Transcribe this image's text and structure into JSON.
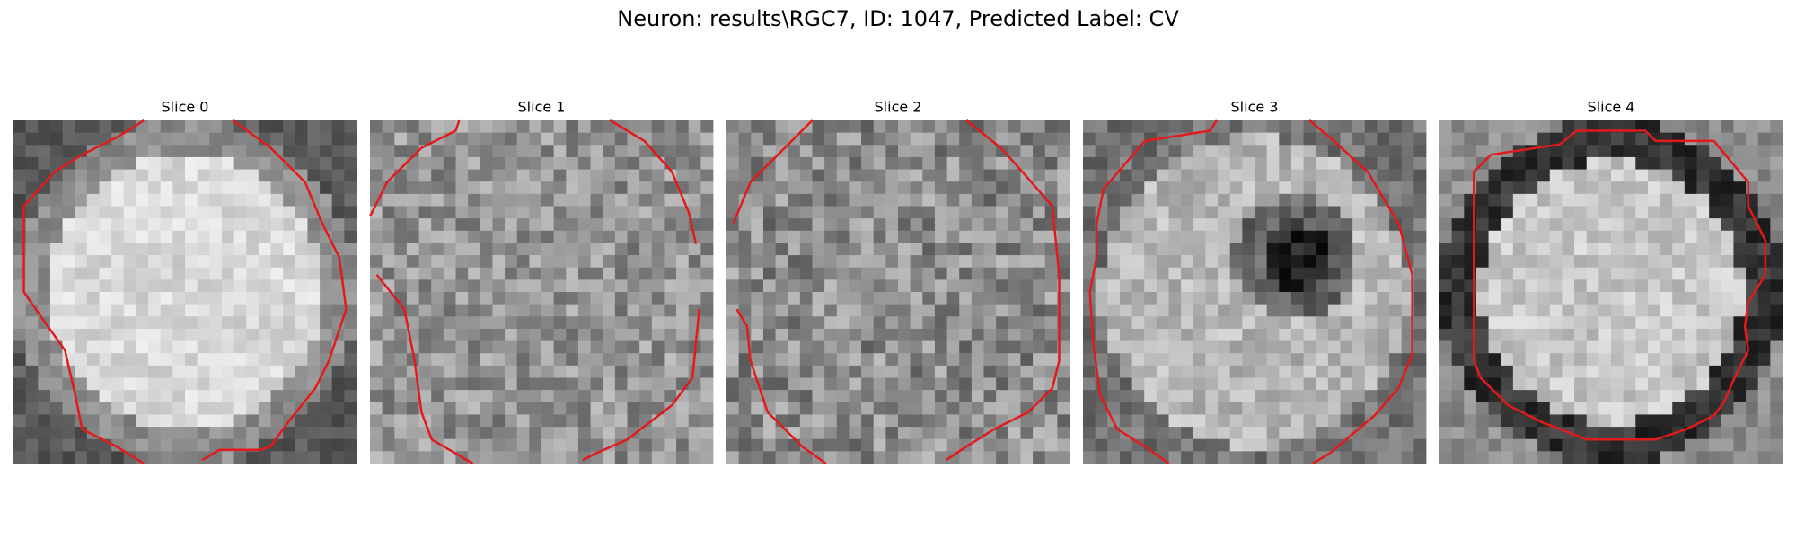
{
  "title": "Neuron: results\\RGC7, ID: 1047, Predicted Label: CV",
  "panels": [
    {
      "title": "Slice 0"
    },
    {
      "title": "Slice 1"
    },
    {
      "title": "Slice 2"
    },
    {
      "title": "Slice 3"
    },
    {
      "title": "Slice 4"
    }
  ]
}
